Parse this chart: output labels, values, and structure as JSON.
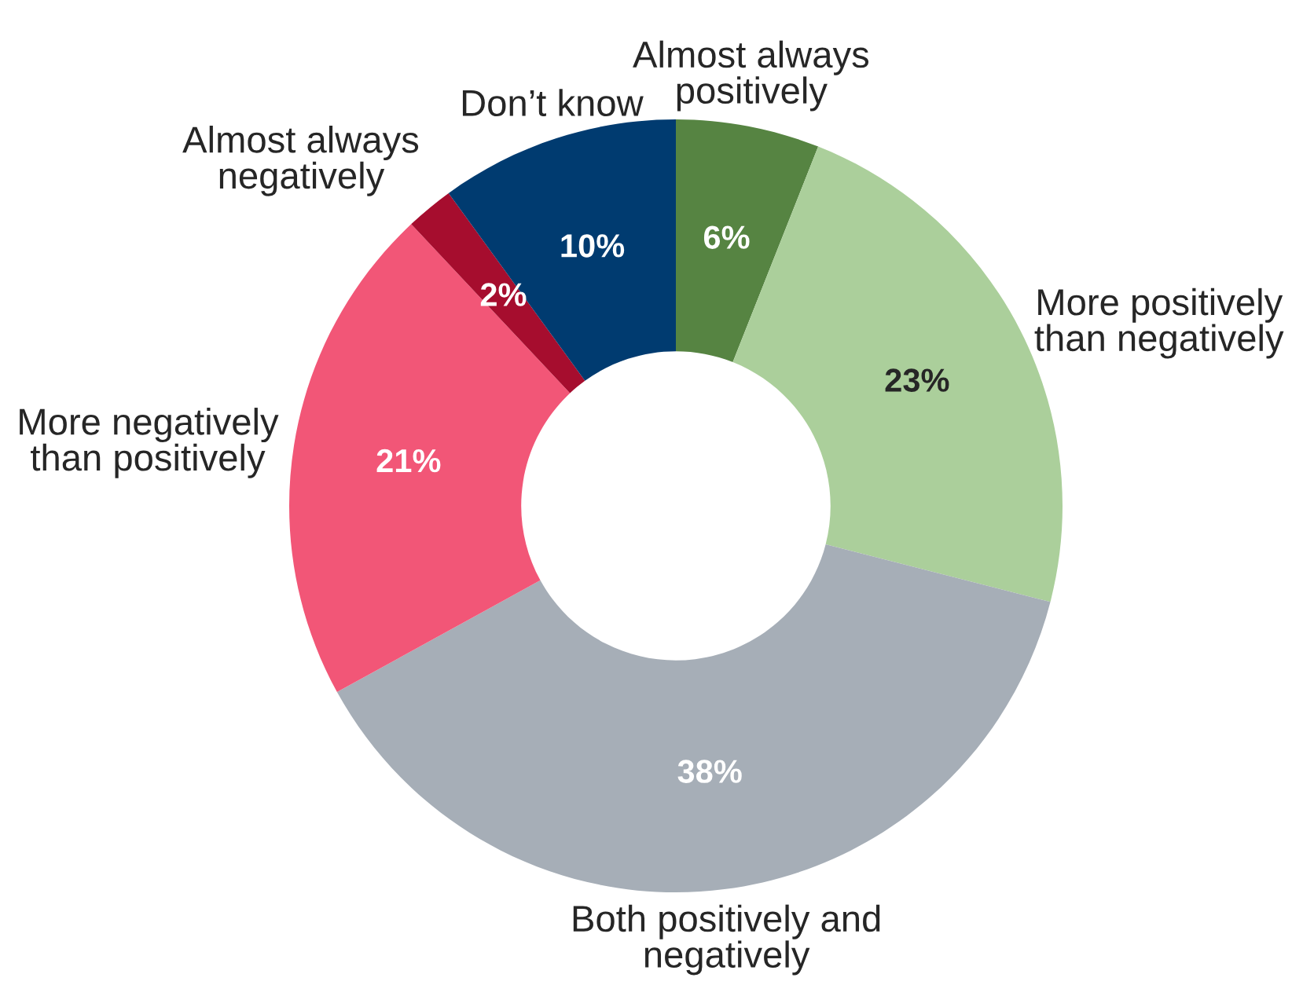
{
  "chart_data": {
    "type": "donut",
    "categories": [
      "Almost always\npositively",
      "More positively\nthan negatively",
      "Both positively and\nnegatively",
      "More negatively\nthan positively",
      "Almost always\nnegatively",
      "Don’t know"
    ],
    "values": [
      6,
      23,
      38,
      21,
      2,
      10
    ],
    "colors": [
      "#568442",
      "#abcf9b",
      "#a6aeb7",
      "#f25677",
      "#a60d2e",
      "#003b70"
    ],
    "value_labels": [
      "6%",
      "23%",
      "38%",
      "21%",
      "2%",
      "10%"
    ]
  }
}
